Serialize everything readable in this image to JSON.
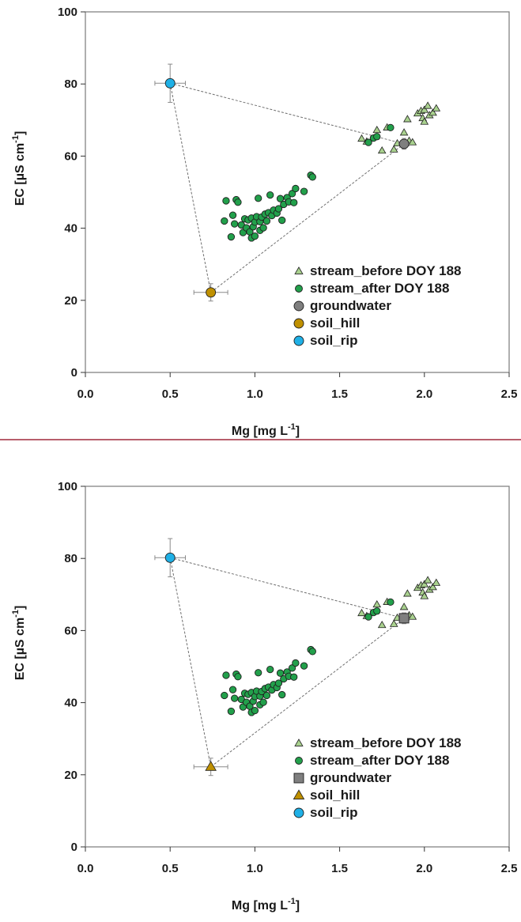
{
  "chart_data": [
    {
      "type": "scatter",
      "xlabel": "Mg [mg L",
      "xlabel_sup": "-1",
      "xlabel_end": "]",
      "ylabel": "EC [µS cm",
      "ylabel_sup": "-1",
      "ylabel_end": "]",
      "xlim": [
        0,
        2.5
      ],
      "ylim": [
        0,
        100
      ],
      "x_ticks": [
        "0.0",
        "0.5",
        "1.0",
        "1.5",
        "2.0",
        "2.5"
      ],
      "y_ticks": [
        "0",
        "20",
        "40",
        "60",
        "80",
        "100"
      ],
      "legend_position": "bottom-right",
      "triangle": [
        [
          0.5,
          80.2
        ],
        [
          0.74,
          22.2
        ],
        [
          1.88,
          63.4
        ]
      ],
      "series": [
        {
          "name": "stream_before DOY 188",
          "marker": "triangle",
          "color": "#a9d18e",
          "points": [
            [
              1.63,
              64.8
            ],
            [
              1.66,
              64.0
            ],
            [
              1.72,
              67.2
            ],
            [
              1.75,
              61.5
            ],
            [
              1.78,
              67.9
            ],
            [
              1.82,
              61.8
            ],
            [
              1.84,
              63.5
            ],
            [
              1.88,
              66.5
            ],
            [
              1.9,
              70.2
            ],
            [
              1.91,
              64.2
            ],
            [
              1.93,
              63.8
            ],
            [
              1.96,
              71.8
            ],
            [
              1.98,
              72.5
            ],
            [
              1.99,
              70.5
            ],
            [
              2.0,
              69.5
            ],
            [
              2.0,
              72.8
            ],
            [
              2.02,
              73.9
            ],
            [
              2.03,
              71.3
            ],
            [
              2.05,
              72.0
            ],
            [
              2.07,
              73.2
            ]
          ]
        },
        {
          "name": "stream_after DOY 188",
          "marker": "circle",
          "color": "#22a04b",
          "points": [
            [
              0.82,
              42.0
            ],
            [
              0.83,
              47.6
            ],
            [
              0.86,
              37.6
            ],
            [
              0.87,
              43.6
            ],
            [
              0.88,
              41.2
            ],
            [
              0.89,
              47.9
            ],
            [
              0.9,
              47.2
            ],
            [
              0.92,
              40.9
            ],
            [
              0.93,
              38.8
            ],
            [
              0.94,
              42.6
            ],
            [
              0.95,
              40.1
            ],
            [
              0.96,
              42.3
            ],
            [
              0.97,
              39.0
            ],
            [
              0.98,
              37.3
            ],
            [
              0.98,
              42.8
            ],
            [
              0.99,
              40.4
            ],
            [
              1.0,
              37.8
            ],
            [
              1.0,
              41.7
            ],
            [
              1.01,
              43.2
            ],
            [
              1.02,
              48.3
            ],
            [
              1.03,
              39.4
            ],
            [
              1.03,
              41.8
            ],
            [
              1.04,
              43.1
            ],
            [
              1.05,
              40.1
            ],
            [
              1.06,
              43.9
            ],
            [
              1.07,
              42.0
            ],
            [
              1.08,
              44.3
            ],
            [
              1.09,
              49.2
            ],
            [
              1.1,
              43.5
            ],
            [
              1.11,
              45.0
            ],
            [
              1.13,
              44.2
            ],
            [
              1.14,
              45.4
            ],
            [
              1.15,
              48.2
            ],
            [
              1.16,
              42.2
            ],
            [
              1.17,
              46.6
            ],
            [
              1.19,
              48.5
            ],
            [
              1.2,
              47.3
            ],
            [
              1.22,
              49.6
            ],
            [
              1.23,
              47.1
            ],
            [
              1.24,
              51.0
            ],
            [
              1.29,
              50.2
            ],
            [
              1.33,
              54.7
            ],
            [
              1.34,
              54.2
            ],
            [
              1.67,
              63.8
            ],
            [
              1.7,
              65.0
            ],
            [
              1.72,
              65.4
            ],
            [
              1.8,
              67.9
            ]
          ]
        },
        {
          "name": "groundwater",
          "color": "#7f7f7f",
          "points": [
            [
              1.88,
              63.4
            ]
          ],
          "err": [
            0.03,
            1.5
          ]
        },
        {
          "name": "soil_hill",
          "color": "#bf9000",
          "points": [
            [
              0.74,
              22.2
            ]
          ],
          "err": [
            0.1,
            2.4
          ]
        },
        {
          "name": "soil_rip",
          "color": "#1fb0e6",
          "points": [
            [
              0.5,
              80.2
            ]
          ],
          "err": [
            0.09,
            5.3
          ]
        }
      ],
      "panels": [
        {
          "groundwater_marker": "circle",
          "soil_hill_marker": "circle",
          "soil_rip_marker": "circle"
        },
        {
          "groundwater_marker": "square",
          "soil_hill_marker": "triangle",
          "soil_rip_marker": "circle"
        }
      ]
    }
  ],
  "separator_color": "#a0283c"
}
